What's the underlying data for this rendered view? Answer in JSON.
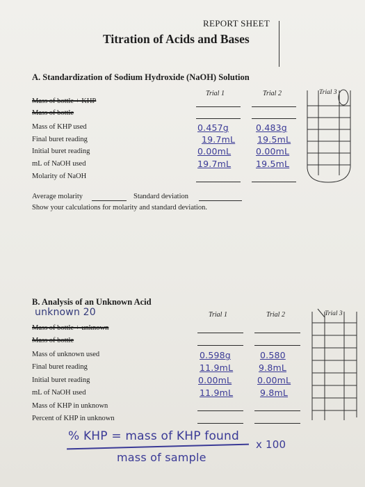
{
  "header": {
    "label": "REPORT SHEET",
    "title": "Titration of Acids and Bases"
  },
  "section_a": {
    "title": "A. Standardization of Sodium Hydroxide (NaOH) Solution",
    "trial_1": "Trial 1",
    "trial_2": "Trial 2",
    "trial_3": "Trial 3",
    "rows": [
      "Mass of bottle + KHP",
      "Mass of bottle",
      "Mass of KHP used",
      "Final buret reading",
      "Initial buret reading",
      "mL of NaOH used",
      "Molarity of NaOH"
    ],
    "values_trial_1": [
      "0.457g",
      "19.7mL",
      "0.00mL",
      "19.7mL"
    ],
    "values_trial_2": [
      "0.483g",
      "19.5mL",
      "0.00mL",
      "19.5mL"
    ],
    "avg_molarity_label": "Average molarity",
    "std_dev_label": "Standard deviation",
    "calc_instruction": "Show your calculations for molarity and standard deviation."
  },
  "section_b": {
    "title": "B. Analysis of an Unknown Acid",
    "unknown_note": "unknown 20",
    "trial_1": "Trial 1",
    "trial_2": "Trial 2",
    "trial_3": "Trial 3",
    "rows": [
      "Mass of bottle + unknown",
      "Mass of bottle",
      "Mass of unknown used",
      "Final buret reading",
      "Initial buret reading",
      "mL of NaOH used",
      "Mass of KHP in unknown",
      "Percent of KHP in unknown"
    ],
    "values_trial_1": [
      "0.598g",
      "11.9mL",
      "0.00mL",
      "11.9mL"
    ],
    "values_trial_2": [
      "0.580",
      "9.8mL",
      "0.00mL",
      "9.8mL"
    ]
  },
  "formula": {
    "numerator": "% KHP = mass of KHP found",
    "denominator": "mass of sample",
    "multiplier": "x 100"
  }
}
